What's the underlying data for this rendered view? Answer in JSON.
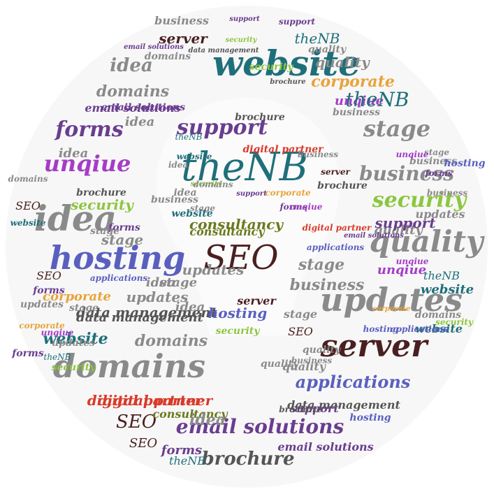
{
  "colors": {
    "gray": "#8a8a8a",
    "dark_gray": "#555555",
    "teal": "#1f6f7a",
    "purple": "#6a3d8f",
    "magenta": "#a43cc7",
    "green": "#8cc63f",
    "olive": "#6b7a1f",
    "maroon": "#4a1f1f",
    "red": "#d93a2a",
    "blue": "#5a5fbf",
    "orange": "#e8a33a",
    "cyan": "#2a9aa8",
    "bg": "#f6f6f6"
  },
  "words": [
    {
      "text": "theNB",
      "color": "teal"
    },
    {
      "text": "website",
      "color": "teal"
    },
    {
      "text": "SEO",
      "color": "maroon"
    },
    {
      "text": "idea",
      "color": "gray"
    },
    {
      "text": "hosting",
      "color": "blue"
    },
    {
      "text": "updates",
      "color": "gray"
    },
    {
      "text": "quality",
      "color": "gray"
    },
    {
      "text": "domains",
      "color": "gray"
    },
    {
      "text": "server",
      "color": "maroon"
    },
    {
      "text": "email solutions",
      "color": "purple"
    },
    {
      "text": "stage",
      "color": "gray"
    },
    {
      "text": "business",
      "color": "gray"
    },
    {
      "text": "security",
      "color": "green"
    },
    {
      "text": "support",
      "color": "purple"
    },
    {
      "text": "consultancy",
      "color": "olive"
    },
    {
      "text": "unqiue",
      "color": "magenta"
    },
    {
      "text": "forms",
      "color": "purple"
    },
    {
      "text": "applications",
      "color": "blue"
    },
    {
      "text": "digital partner",
      "color": "red"
    },
    {
      "text": "brochure",
      "color": "dark_gray"
    },
    {
      "text": "corporate",
      "color": "orange"
    },
    {
      "text": "data management",
      "color": "dark_gray"
    }
  ]
}
